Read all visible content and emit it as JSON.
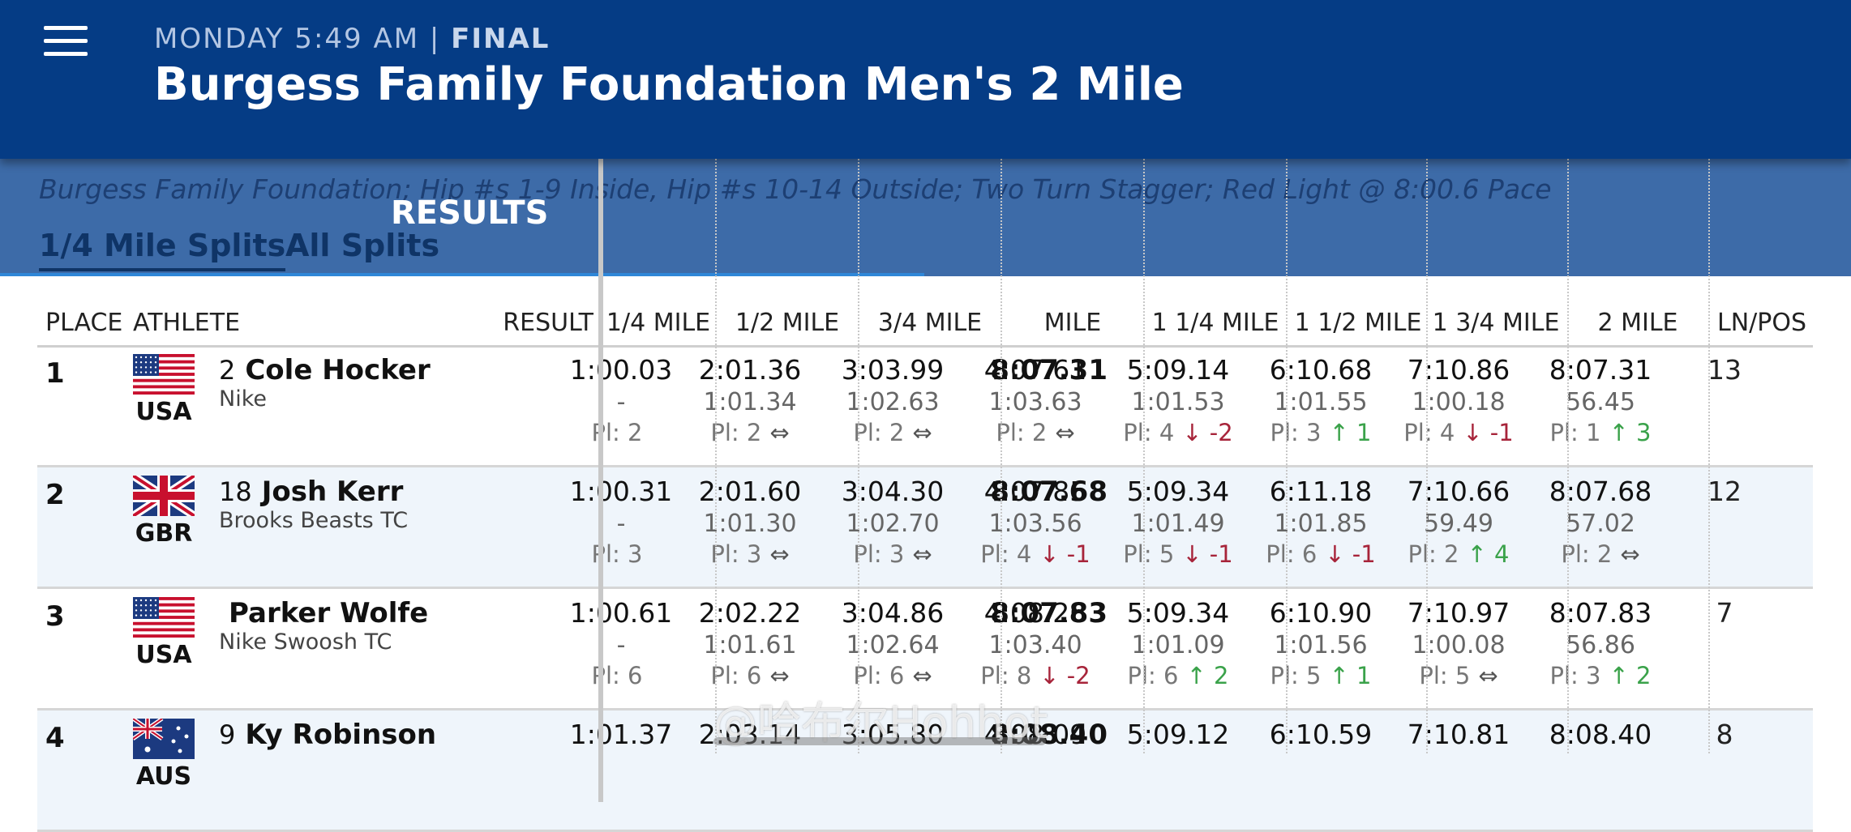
{
  "header": {
    "status": "MONDAY 5:49 AM |",
    "final": "FINAL",
    "title": "Burgess Family Foundation Men's 2 Mile"
  },
  "event": {
    "description": "Burgess Family Foundation; Hip #s 1-9 Inside, Hip #s 10-14 Outside; Two Turn Stagger; Red Light @ 8:00.6 Pace",
    "results_heading": "RESULTS",
    "tabs": [
      "1/4 Mile Splits",
      "All Splits"
    ]
  },
  "columns": {
    "place": "PLACE",
    "athlete": "ATHLETE",
    "result": "RESULT",
    "splits": [
      "1/4 MILE",
      "1/2 MILE",
      "3/4 MILE",
      "MILE",
      "1 1/4 MILE",
      "1 1/2 MILE",
      "1 3/4 MILE",
      "2 MILE"
    ],
    "lnpos": "LN/POS"
  },
  "colors": {
    "header": "#053c85",
    "band": "#3d6ba8",
    "up": "#3aa24a",
    "down": "#a7243a"
  },
  "rows": [
    {
      "place": "1",
      "bib": "2",
      "name": "Cole Hocker",
      "team": "Nike",
      "country": "USA",
      "flag": "usa-flag",
      "result": "8:07.31",
      "lnpos": "13",
      "splits": [
        {
          "time": "1:00.03",
          "split": "-",
          "pl": "Pl: 2",
          "chg": "",
          "dir": ""
        },
        {
          "time": "2:01.36",
          "split": "1:01.34",
          "pl": "Pl: 2",
          "chg": "⇔",
          "dir": "same"
        },
        {
          "time": "3:03.99",
          "split": "1:02.63",
          "pl": "Pl: 2",
          "chg": "⇔",
          "dir": "same"
        },
        {
          "time": "4:07.61",
          "split": "1:03.63",
          "pl": "Pl: 2",
          "chg": "⇔",
          "dir": "same"
        },
        {
          "time": "5:09.14",
          "split": "1:01.53",
          "pl": "Pl: 4",
          "chg": "↓ -2",
          "dir": "down"
        },
        {
          "time": "6:10.68",
          "split": "1:01.55",
          "pl": "Pl: 3",
          "chg": "↑ 1",
          "dir": "up"
        },
        {
          "time": "7:10.86",
          "split": "1:00.18",
          "pl": "Pl: 4",
          "chg": "↓ -1",
          "dir": "down"
        },
        {
          "time": "8:07.31",
          "split": "56.45",
          "pl": "Pl: 1",
          "chg": "↑ 3",
          "dir": "up"
        }
      ]
    },
    {
      "place": "2",
      "bib": "18",
      "name": "Josh Kerr",
      "team": "Brooks Beasts TC",
      "country": "GBR",
      "flag": "gbr-flag",
      "result": "8:07.68",
      "lnpos": "12",
      "splits": [
        {
          "time": "1:00.31",
          "split": "-",
          "pl": "Pl: 3",
          "chg": "",
          "dir": ""
        },
        {
          "time": "2:01.60",
          "split": "1:01.30",
          "pl": "Pl: 3",
          "chg": "⇔",
          "dir": "same"
        },
        {
          "time": "3:04.30",
          "split": "1:02.70",
          "pl": "Pl: 3",
          "chg": "⇔",
          "dir": "same"
        },
        {
          "time": "4:07.85",
          "split": "1:03.56",
          "pl": "Pl: 4",
          "chg": "↓ -1",
          "dir": "down"
        },
        {
          "time": "5:09.34",
          "split": "1:01.49",
          "pl": "Pl: 5",
          "chg": "↓ -1",
          "dir": "down"
        },
        {
          "time": "6:11.18",
          "split": "1:01.85",
          "pl": "Pl: 6",
          "chg": "↓ -1",
          "dir": "down"
        },
        {
          "time": "7:10.66",
          "split": "59.49",
          "pl": "Pl: 2",
          "chg": "↑ 4",
          "dir": "up"
        },
        {
          "time": "8:07.68",
          "split": "57.02",
          "pl": "Pl: 2",
          "chg": "⇔",
          "dir": "same"
        }
      ]
    },
    {
      "place": "3",
      "bib": "",
      "name": "Parker Wolfe",
      "team": "Nike Swoosh TC",
      "country": "USA",
      "flag": "usa-flag",
      "result": "8:07.83",
      "lnpos": "7",
      "splits": [
        {
          "time": "1:00.61",
          "split": "-",
          "pl": "Pl: 6",
          "chg": "",
          "dir": ""
        },
        {
          "time": "2:02.22",
          "split": "1:01.61",
          "pl": "Pl: 6",
          "chg": "⇔",
          "dir": "same"
        },
        {
          "time": "3:04.86",
          "split": "1:02.64",
          "pl": "Pl: 6",
          "chg": "⇔",
          "dir": "same"
        },
        {
          "time": "4:08.26",
          "split": "1:03.40",
          "pl": "Pl: 8",
          "chg": "↓ -2",
          "dir": "down"
        },
        {
          "time": "5:09.34",
          "split": "1:01.09",
          "pl": "Pl: 6",
          "chg": "↑ 2",
          "dir": "up"
        },
        {
          "time": "6:10.90",
          "split": "1:01.56",
          "pl": "Pl: 5",
          "chg": "↑ 1",
          "dir": "up"
        },
        {
          "time": "7:10.97",
          "split": "1:00.08",
          "pl": "Pl: 5",
          "chg": "⇔",
          "dir": "same"
        },
        {
          "time": "8:07.83",
          "split": "56.86",
          "pl": "Pl: 3",
          "chg": "↑ 2",
          "dir": "up"
        }
      ]
    },
    {
      "place": "4",
      "bib": "9",
      "name": "Ky Robinson",
      "team": "",
      "country": "AUS",
      "flag": "aus-flag",
      "result": "8:08.40",
      "lnpos": "8",
      "splits": [
        {
          "time": "1:01.37",
          "split": "",
          "pl": "",
          "chg": "",
          "dir": ""
        },
        {
          "time": "2:03.14",
          "split": "",
          "pl": "",
          "chg": "",
          "dir": ""
        },
        {
          "time": "3:05.80",
          "split": "",
          "pl": "",
          "chg": "",
          "dir": ""
        },
        {
          "time": "4:08.09",
          "split": "",
          "pl": "",
          "chg": "",
          "dir": ""
        },
        {
          "time": "5:09.12",
          "split": "",
          "pl": "",
          "chg": "",
          "dir": ""
        },
        {
          "time": "6:10.59",
          "split": "",
          "pl": "",
          "chg": "",
          "dir": ""
        },
        {
          "time": "7:10.81",
          "split": "",
          "pl": "",
          "chg": "",
          "dir": ""
        },
        {
          "time": "8:08.40",
          "split": "",
          "pl": "",
          "chg": "",
          "dir": ""
        }
      ]
    }
  ],
  "watermark": "@哈布尔Hohhot"
}
